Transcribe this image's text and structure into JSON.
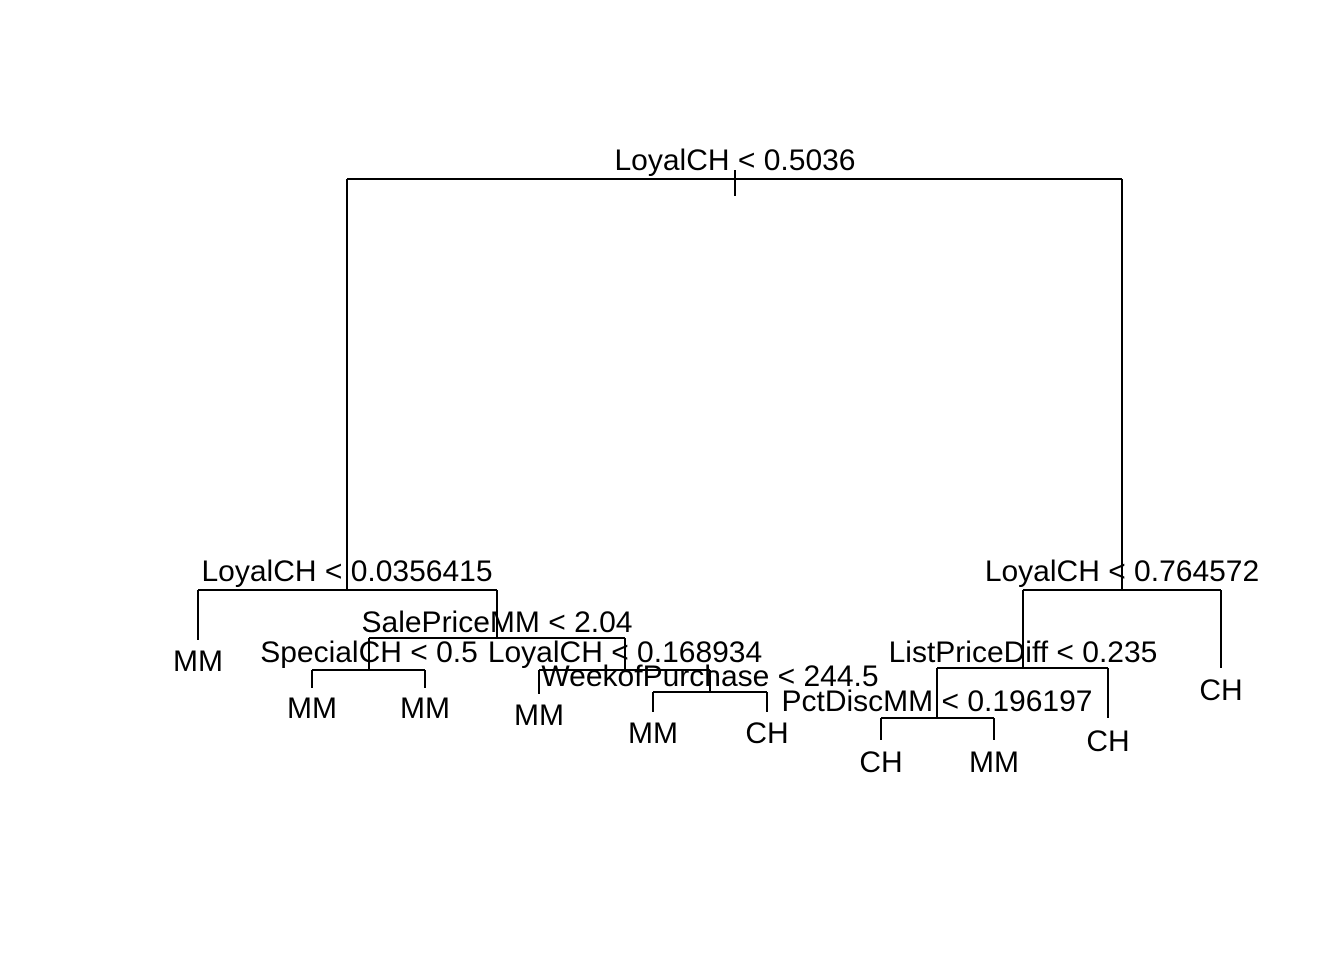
{
  "tree": {
    "splits": [
      {
        "id": "n1",
        "label": "LoyalCH < 0.5036"
      },
      {
        "id": "n2",
        "label": "LoyalCH < 0.0356415"
      },
      {
        "id": "n3",
        "label": "LoyalCH < 0.764572"
      },
      {
        "id": "n4",
        "label": "SalePriceMM < 2.04"
      },
      {
        "id": "n5",
        "label": "SpecialCH < 0.5"
      },
      {
        "id": "n6",
        "label": "LoyalCH < 0.168934"
      },
      {
        "id": "n7",
        "label": "WeekofPurchase < 244.5"
      },
      {
        "id": "n8",
        "label": "ListPriceDiff < 0.235"
      },
      {
        "id": "n9",
        "label": "PctDiscMM < 0.196197"
      }
    ],
    "leaves": [
      {
        "id": "l1",
        "label": "MM"
      },
      {
        "id": "l2",
        "label": "MM"
      },
      {
        "id": "l3",
        "label": "MM"
      },
      {
        "id": "l4",
        "label": "MM"
      },
      {
        "id": "l5",
        "label": "MM"
      },
      {
        "id": "l6",
        "label": "CH"
      },
      {
        "id": "l7",
        "label": "CH"
      },
      {
        "id": "l8",
        "label": "MM"
      },
      {
        "id": "l9",
        "label": "CH"
      },
      {
        "id": "l10",
        "label": "CH"
      }
    ]
  }
}
